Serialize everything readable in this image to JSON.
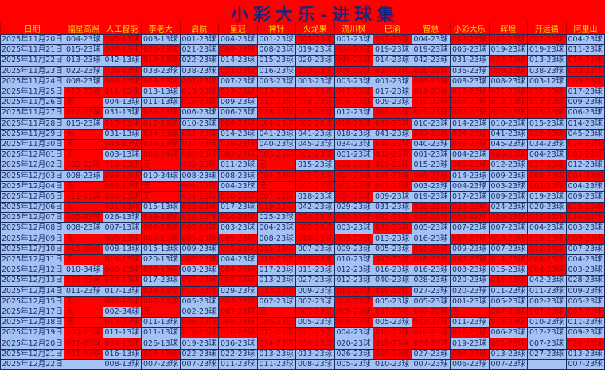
{
  "title": "小彩大乐-进球集",
  "colors": {
    "r": "#ff0000",
    "b": "#a4c2f4",
    "header_text": "#ffd700"
  },
  "columns": [
    "日期",
    "福星高照",
    "人工智能",
    "李老大",
    "启航",
    "皇冠",
    "神针",
    "火龙果",
    "流川枫",
    "巴渝",
    "智慧",
    "小彩大乐",
    "辉煌",
    "开运猫",
    "阿里山"
  ],
  "rows": [
    {
      "date": "2025年11月20日",
      "values": [
        "004-23球",
        "005-13球",
        "003-13球",
        "001-23球",
        "004-23球",
        "001-23球",
        "005-23球",
        "001-23球",
        "002-23球",
        "004-23球",
        "002-23球",
        "002-23球",
        "002-23球",
        "004-23球"
      ],
      "colors": "brbbbbrbrbrrrb"
    },
    {
      "date": "2025年11月21日",
      "values": [
        "015-23球",
        "008-13球",
        "020-23球",
        "021-23球",
        "009-23球",
        "008-23球",
        "019-23球",
        "004-23球",
        "019-23球",
        "019-23球",
        "005-23球",
        "019-23球",
        "019-23球",
        "011-23球"
      ],
      "colors": "brrbrbbrbbbbbb"
    },
    {
      "date": "2025年11月22日",
      "values": [
        "013-23球",
        "042-13球",
        "019-13球",
        "022-23球",
        "014-23球",
        "015-23球",
        "020-23球",
        "040-23球",
        "014-23球",
        "042-23球",
        "031-23球",
        "033-23球",
        "013-23球",
        "019-23球"
      ],
      "colors": "bbrbbbbrbbbrbr"
    },
    {
      "date": "2025年11月23日",
      "values": [
        "022-23球",
        "036-13球",
        "038-23球",
        "038-23球",
        "021-23球",
        "016-23球",
        "033-23球",
        "026-23球",
        "033-23球",
        "026-23球",
        "036-23球",
        "029-23球",
        "038-23球",
        "033-23球"
      ],
      "colors": "brbbrbrrrrbrbr"
    },
    {
      "date": "2025年11月24日",
      "values": [
        "008-23球",
        "009-13球",
        "009-23球",
        "007-23球",
        "007-23球",
        "003-23球",
        "003-23球",
        "003-23球",
        "001-23球",
        "007-23球",
        "008-23球",
        "008-23球",
        "003-12球",
        "009-23球"
      ],
      "colors": "brrrbbbbbrbbbr"
    },
    {
      "date": "2025年11月25日",
      "values": [
        "012-23球",
        "011-13球",
        "013-13球",
        "013-23球",
        "013-23球",
        "013-23球",
        "021-23球",
        "011-23球",
        "017-23球",
        "011-23球",
        "013-23球",
        "021-23球",
        "012-23球",
        "017-23球"
      ],
      "colors": "rrbrrrrrbrrrrb"
    },
    {
      "date": "2025年11月26日",
      "values": [
        "无",
        "004-13球",
        "011-13球",
        "010-23球",
        "009-23球",
        "011-23球",
        "010-23球",
        "006-23球",
        "009-23球",
        "010-23球",
        "008-23球",
        "018-23球",
        "014-23球",
        "009-23球"
      ],
      "colors": "rbbrbrrrbrrrrb"
    },
    {
      "date": "2025年11月27日",
      "values": [
        "022-23球",
        "031-13球",
        "022-23球",
        "006-23球",
        "006-23球",
        "018-23球",
        "008-23球",
        "012-23球",
        "018-23球",
        "029-23球",
        "022-23球",
        "029-23球",
        "025-23球",
        "006-23球"
      ],
      "colors": "rbrbbrrbrrrrrb"
    },
    {
      "date": "2025年11月28日",
      "values": [
        "015-23球",
        "013-13球",
        "012-13球",
        "010-23球",
        "004-23球",
        "004-23球",
        "002-23球",
        "010-23球",
        "002-23球",
        "010-23球",
        "014-23球",
        "010-23球",
        "015-23球",
        "014-23球"
      ],
      "colors": "brrbrrrrrbbbbb"
    },
    {
      "date": "2025年11月29日",
      "values": [
        "无",
        "031-13球",
        "034-23球",
        "021-23球",
        "014-23球",
        "041-23球",
        "041-23球",
        "018-23球",
        "041-23球",
        "037-23球",
        "034-23球",
        "041-23球",
        "012-23球",
        "045-23球"
      ],
      "colors": "rbrrbbbbbrrbrb"
    },
    {
      "date": "2025年11月30日",
      "values": [
        "无",
        "045-13球",
        "036-13球",
        "027-23球",
        "029-23球",
        "040-23球",
        "045-23球",
        "034-23球",
        "046-23球",
        "040-23球",
        "029-23球",
        "045-23球",
        "034-23球",
        "029-23球"
      ],
      "colors": "rrrrrbbbrbrbbr"
    },
    {
      "date": "2025年12月01日",
      "values": [
        "无",
        "003-13球",
        "003-24球",
        "002-23球",
        "002-23球",
        "003-23球",
        "002-23球",
        "001-23球",
        "002-23球",
        "001-23球",
        "004-23球",
        "003-23球",
        "004-23球",
        "002-23球"
      ],
      "colors": "rbrrrrrbrbbrbr"
    },
    {
      "date": "2025年12月02日",
      "values": [
        "002-23球",
        "018-13球",
        "无",
        "009-23球",
        "011-23球",
        "无",
        "015-23球",
        "008-23球",
        "015-23球",
        "015-23球",
        "009-23球",
        "012-23球",
        "017-23球",
        "012-23球"
      ],
      "colors": "rrrrbrbrrbrbrb"
    },
    {
      "date": "2025年12月03日",
      "values": [
        "008-23球",
        "009-13球",
        "010-34球",
        "008-23球",
        "008-23球",
        "004-23球",
        "005-23球",
        "004-23球",
        "005-23球",
        "005-23球",
        "014-23球",
        "009-23球",
        "005-23球",
        "004-23球"
      ],
      "colors": "brbbbrrrrrbbrr"
    },
    {
      "date": "2025年12月04日",
      "values": [
        "无",
        "003-13球",
        "无",
        "001-23球",
        "004-23球",
        "无",
        "001-23球",
        "002-23球",
        "001-23球",
        "003-23球",
        "004-23球",
        "003-23球",
        "002-23球",
        "004-23球"
      ],
      "colors": "rrrrbrrrrbbbrb"
    },
    {
      "date": "2025年12月05日",
      "values": [
        "011-23球",
        "009-13球",
        "无",
        "004-23球",
        "010-23球",
        "007-23球",
        "018-23球",
        "004-23球",
        "009-23球",
        "019-23球",
        "017-23球",
        "009-23球",
        "019-23球",
        "009-23球"
      ],
      "colors": "rrrrrrbrbbbbbb"
    },
    {
      "date": "2025年12月06日",
      "values": [
        "无",
        "031-13球",
        "015-13球",
        "022-23球",
        "017-23球",
        "019-23球",
        "042-23球",
        "029-23球",
        "031-23球",
        "028-23球",
        "025-23球",
        "024-23球",
        "020-23球",
        "025-23球"
      ],
      "colors": "rrbrbrbbbrrbbr"
    },
    {
      "date": "2025年12月07日",
      "values": [
        "005-23球",
        "026-13球",
        "029-13球",
        "022-23球",
        "016-23球",
        "025-23球",
        "024-23球",
        "022-23球",
        "022-23球",
        "022-23球",
        "022-23球",
        "029-23球",
        "032-23球",
        "016-23球"
      ],
      "colors": "rbrrrbrrrrrrrr"
    },
    {
      "date": "2025年12月08日",
      "values": [
        "008-23球",
        "007-13球",
        "002-13球",
        "002-23球",
        "003-23球",
        "004-23球",
        "002-23球",
        "003-23球",
        "002-23球",
        "005-23球",
        "007-23球",
        "007-23球",
        "004-23球",
        "003-23球"
      ],
      "colors": "bbrrbbrbrbbbbb"
    },
    {
      "date": "2025年12月09日",
      "values": [
        "无",
        "008-13球",
        "009-13球",
        "005-23球",
        "009-23球",
        "008-23球",
        "010-23球",
        "009-23球",
        "013-23球",
        "016-23球",
        "007-23球",
        "018-23球",
        "010-23球",
        "009-23球"
      ],
      "colors": "rrrrrbrrbbrrrr"
    },
    {
      "date": "2025年12月10日",
      "values": [
        "015-23球",
        "008-13球",
        "015-13球",
        "009-23球",
        "015-23球",
        "015-23球",
        "007-23球",
        "009-23球",
        "005-23球",
        "015-23球",
        "009-23球",
        "007-23球",
        "012-34球",
        "007-23球"
      ],
      "colors": "rbbbrrbbbrbbrb"
    },
    {
      "date": "2025年12月11日",
      "values": [
        "无",
        "019-13球",
        "020-13球",
        "006-23球",
        "004-23球",
        "019-23球",
        "019-23球",
        "010-23球",
        "007-23球",
        "018-23球",
        "007-23球",
        "014-23球",
        "006-23球",
        "004-23球"
      ],
      "colors": "rrbrbrrbrrrrrb"
    },
    {
      "date": "2025年12月12日",
      "values": [
        "010-34球",
        "008-13球",
        "008-13球",
        "003-23球",
        "004-23球",
        "017-23球",
        "011-23球",
        "012-23球",
        "016-23球",
        "016-23球",
        "003-23球",
        "015-23球",
        "004-23球",
        "003-23球"
      ],
      "colors": "brrbrbbbbbbbrb"
    },
    {
      "date": "2025年12月13日",
      "values": [
        "010-23球",
        "039-13球",
        "017-23球",
        "007-23球",
        "008-23球",
        "013-23球",
        "027-23球",
        "012-23球",
        "040-23球",
        "028-23球",
        "020-23球",
        "041-23球",
        "042-23球",
        "028-23球"
      ],
      "colors": "rrbrrbbbbbbrbb"
    },
    {
      "date": "2025年12月14日",
      "values": [
        "011-23球",
        "017-13球",
        "029-13球",
        "016-23球",
        "029-23球",
        "013-23球",
        "009-23球",
        "013-23球",
        "019-23球",
        "027-23球",
        "020-23球",
        "011-23球",
        "011-23球",
        "009-23球"
      ],
      "colors": "bbrrbrbrrbbbbb"
    },
    {
      "date": "2025年12月15日",
      "values": [
        "无",
        "002-13球",
        "002-13球",
        "005-23球",
        "003-23球",
        "002-23球",
        "002-23球",
        "008-23球",
        "005-23球",
        "005-23球",
        "001-23球",
        "005-23球",
        "002-23球",
        "005-23球"
      ],
      "colors": "rrrbrbbrbbbbbb"
    },
    {
      "date": "2025年12月17日",
      "values": [
        "无",
        "002-34球",
        "无",
        "002-23球",
        "007-23球",
        "无",
        "007-23球",
        "005-23球",
        "007-23球",
        "007-23球",
        "无",
        "007-23球",
        "007-23球",
        "007-23球"
      ],
      "colors": "rbrbrrrrrrrrrr"
    },
    {
      "date": "2025年12月18日",
      "values": [
        "无",
        "013-23球",
        "011-13球",
        "006-23球",
        "006-23球",
        "006-23球",
        "005-23球",
        "006-23球",
        "005-23球",
        "013-23球",
        "011-23球",
        "013-23球",
        "010-23球",
        "011-23球"
      ],
      "colors": "rrbrrrbrbrbrbb"
    },
    {
      "date": "2025年12月19日",
      "values": [
        "003-23球",
        "011-13球",
        "011-13球",
        "010-23球",
        "010-23球",
        "011-23球",
        "011-23球",
        "004-23球",
        "010-23球",
        "010-23球",
        "013-23球",
        "006-23球",
        "012-23球",
        "009-23球"
      ],
      "colors": "rbbrrrrbrrrbbb"
    },
    {
      "date": "2025年12月20日",
      "values": [
        "021-23球",
        "034-13球",
        "026-13球",
        "019-23球",
        "036-23球",
        "034-23球",
        "034-23球",
        "020-23球",
        "018-23球",
        "024-23球",
        "019-23球",
        "021-23球",
        "007-23球",
        "024-23球"
      ],
      "colors": "rrbbbrrbrrbrbr"
    },
    {
      "date": "2025年12月21日",
      "values": [
        "021-23球",
        "016-13球",
        "013-13球",
        "022-23球",
        "022-23球",
        "013-23球",
        "013-23球",
        "026-23球",
        "019-23球",
        "027-23球",
        "006-23球",
        "013-23球",
        "027-23球",
        "013-23球"
      ],
      "colors": "rbrbbbbbrbrbbb"
    },
    {
      "date": "2025年12月22日",
      "values": [
        "",
        "008-13球",
        "007-23球",
        "007-23球",
        "011-23球",
        "011-23球",
        "008-23球",
        "005-23球",
        "010-23球",
        "007-23球",
        "006-23球",
        "007-23球",
        "",
        "007-23球"
      ],
      "colors": "bbbbbbbbbbbbbb"
    }
  ]
}
